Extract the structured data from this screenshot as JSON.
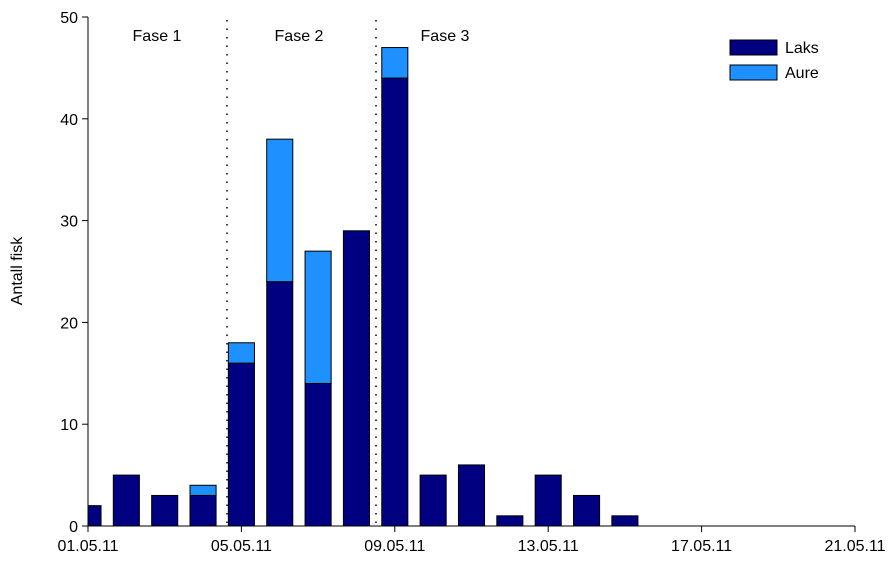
{
  "chart_data": {
    "type": "stacked-bar",
    "y_label": "Antall fisk",
    "annotations": [
      "Fase 1",
      "Fase 2",
      "Fase 3"
    ],
    "x": [
      "01.05.11",
      "02.05.11",
      "03.05.11",
      "04.05.11",
      "05.05.11",
      "06.05.11",
      "07.05.11",
      "08.05.11",
      "09.05.11",
      "10.05.11",
      "11.05.11",
      "12.05.11",
      "13.05.11",
      "14.05.11",
      "15.05.11"
    ],
    "series": [
      {
        "name": "Laks",
        "color": "#000080",
        "values": [
          2,
          5,
          3,
          3,
          16,
          24,
          14,
          29,
          44,
          5,
          6,
          1,
          5,
          3,
          1
        ]
      },
      {
        "name": "Aure",
        "color": "#1e90ff",
        "values": [
          0,
          0,
          0,
          1,
          2,
          14,
          13,
          0,
          3,
          0,
          0,
          0,
          0,
          0,
          0
        ]
      }
    ],
    "xlim": [
      "01.05.11",
      "21.05.11"
    ],
    "xticks": [
      "01.05.11",
      "05.05.11",
      "09.05.11",
      "13.05.11",
      "17.05.11",
      "21.05.11"
    ],
    "ylim": [
      0,
      50
    ],
    "yticks": [
      0,
      10,
      20,
      30,
      40,
      50
    ],
    "legend": "upper right"
  }
}
